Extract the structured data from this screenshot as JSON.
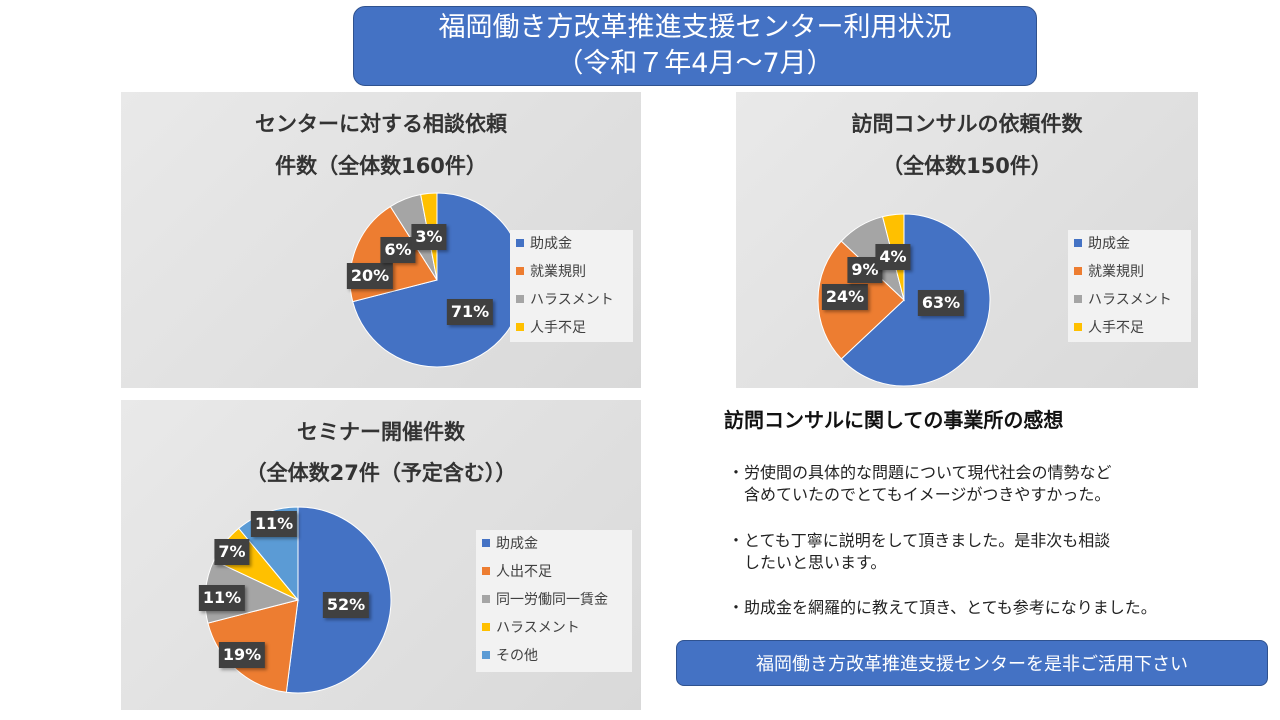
{
  "header": {
    "title_line1": "福岡働き方改革推進支援センター利用状況",
    "title_line2": "（令和７年4月～7月）"
  },
  "chart_data": [
    {
      "type": "pie",
      "title_line1": "センターに対する相談依頼",
      "title_line2": "件数（全体数160件）",
      "categories": [
        "助成金",
        "就業規則",
        "ハラスメント",
        "人手不足"
      ],
      "values": [
        71,
        20,
        6,
        3
      ],
      "labels": [
        "71%",
        "20%",
        "6%",
        "3%"
      ],
      "colors": [
        "#4472C4",
        "#ED7D31",
        "#A5A5A5",
        "#FFC000"
      ],
      "legend": "right"
    },
    {
      "type": "pie",
      "title_line1": "訪問コンサルの依頼件数",
      "title_line2": "（全体数150件）",
      "categories": [
        "助成金",
        "就業規則",
        "ハラスメント",
        "人手不足"
      ],
      "values": [
        63,
        24,
        9,
        4
      ],
      "labels": [
        "63%",
        "24%",
        "9%",
        "4%"
      ],
      "colors": [
        "#4472C4",
        "#ED7D31",
        "#A5A5A5",
        "#FFC000"
      ],
      "legend": "right"
    },
    {
      "type": "pie",
      "title_line1": "セミナー開催件数",
      "title_line2": "（全体数27件（予定含む））",
      "categories": [
        "助成金",
        "人出不足",
        "同一労働同一賃金",
        "ハラスメント",
        "その他"
      ],
      "values": [
        52,
        19,
        11,
        7,
        11
      ],
      "labels": [
        "52%",
        "19%",
        "11%",
        "7%",
        "11%"
      ],
      "colors": [
        "#4472C4",
        "#ED7D31",
        "#A5A5A5",
        "#FFC000",
        "#5B9BD5"
      ],
      "legend": "right"
    }
  ],
  "feedback": {
    "heading": "訪問コンサルに関しての事業所の感想",
    "comments": [
      "・労使間の具体的な問題について現代社会の情勢など\n　含めていたのでとてもイメージがつきやすかった。",
      "・とても丁寧に説明をして頂きました。是非次も相談\n　したいと思います。",
      "・助成金を網羅的に教えて頂き、とても参考になりました。"
    ]
  },
  "cta": {
    "label": "福岡働き方改革推進支援センターを是非ご活用下さい"
  }
}
